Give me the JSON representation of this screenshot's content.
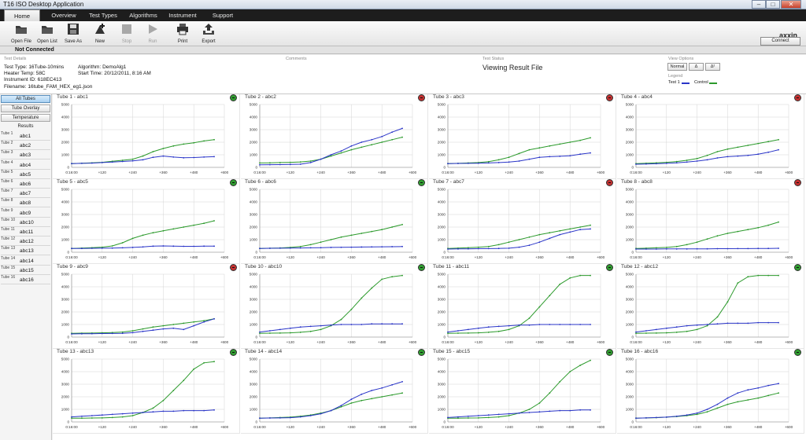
{
  "window": {
    "title": "T16 ISO Desktop Application",
    "controls": [
      "–",
      "□",
      "✕"
    ]
  },
  "menu": {
    "tabs": [
      "Home",
      "Overview",
      "Test Types",
      "Algorithms",
      "Instrument",
      "Support"
    ],
    "active": "Home"
  },
  "toolbar": {
    "buttons": [
      {
        "label": "Open File",
        "icon": "folder-icon",
        "enabled": true
      },
      {
        "label": "Open List",
        "icon": "folder-list-icon",
        "enabled": true
      },
      {
        "label": "Save As",
        "icon": "save-icon",
        "enabled": true
      },
      {
        "label": "New",
        "icon": "new-test-icon",
        "enabled": true
      },
      {
        "label": "Stop",
        "icon": "stop-icon",
        "enabled": false
      },
      {
        "label": "Run",
        "icon": "play-icon",
        "enabled": false
      },
      {
        "label": "Print",
        "icon": "printer-icon",
        "enabled": true
      },
      {
        "label": "Export",
        "icon": "export-icon",
        "enabled": true
      }
    ],
    "logo": "axxin",
    "connect_label": "Connect"
  },
  "connection_status": "Not Connected",
  "details": {
    "header": "Test Details",
    "test_type": "Test Type: 16Tube-10mins",
    "heater_temp": "Heater Temp: 58C",
    "instrument_id": "Instrument ID: 618EC413",
    "filename": "Filename: 16tube_FAM_HEX_eg1.json",
    "algorithm": "Algorithm: DemoAlg1",
    "start_time": "Start Time: 20/12/2011, 8:16 AM"
  },
  "comments": {
    "header": "Comments"
  },
  "test_status": {
    "header": "Test Status",
    "value": "Viewing Result File"
  },
  "view_options": {
    "header": "View Options",
    "buttons": [
      "Normal",
      "Δ",
      "Δ²"
    ],
    "legend_header": "Legend",
    "legend": [
      {
        "label": "Test 1",
        "color": "#2a35c8"
      },
      {
        "label": "Control",
        "color": "#2c9a2c"
      }
    ]
  },
  "sidebar": {
    "buttons": [
      "All Tubes",
      "Tube Overlay",
      "Temperature"
    ],
    "active": "All Tubes",
    "results_header": "Results",
    "tubes": [
      {
        "tube": "Tube 1",
        "name": "abc1"
      },
      {
        "tube": "Tube 2",
        "name": "abc2"
      },
      {
        "tube": "Tube 3",
        "name": "abc3"
      },
      {
        "tube": "Tube 4",
        "name": "abc4"
      },
      {
        "tube": "Tube 5",
        "name": "abc5"
      },
      {
        "tube": "Tube 6",
        "name": "abc6"
      },
      {
        "tube": "Tube 7",
        "name": "abc7"
      },
      {
        "tube": "Tube 8",
        "name": "abc8"
      },
      {
        "tube": "Tube 9",
        "name": "abc9"
      },
      {
        "tube": "Tube 10",
        "name": "abc10"
      },
      {
        "tube": "Tube 11",
        "name": "abc11"
      },
      {
        "tube": "Tube 12",
        "name": "abc12"
      },
      {
        "tube": "Tube 13",
        "name": "abc13"
      },
      {
        "tube": "Tube 14",
        "name": "abc14"
      },
      {
        "tube": "Tube 15",
        "name": "abc15"
      },
      {
        "tube": "Tube 16",
        "name": "abc16"
      }
    ]
  },
  "colors": {
    "test": "#2a35c8",
    "control": "#2c9a2c",
    "positive": "#2f9d2f",
    "negative": "#c53030"
  },
  "chart_data": {
    "type": "line",
    "x_tick_labels": [
      "0:16:00",
      "+120",
      "+240",
      "+360",
      "+480",
      "+600"
    ],
    "x_ticks": [
      0,
      120,
      240,
      360,
      480,
      600
    ],
    "y_ticks": [
      0,
      1000,
      2000,
      3000,
      4000,
      5000
    ],
    "xlim": [
      0,
      600
    ],
    "ylim": [
      0,
      5000
    ],
    "x": [
      0,
      40,
      80,
      120,
      160,
      200,
      240,
      280,
      320,
      360,
      400,
      440,
      480,
      520,
      560
    ],
    "series_names": [
      "Test 1",
      "Control"
    ],
    "panels": [
      {
        "title": "Tube 1 - abc1",
        "status": "positive",
        "test": [
          300,
          320,
          340,
          380,
          420,
          470,
          520,
          600,
          800,
          900,
          820,
          760,
          780,
          820,
          850
        ],
        "control": [
          300,
          330,
          360,
          400,
          480,
          560,
          650,
          900,
          1250,
          1500,
          1700,
          1850,
          1950,
          2100,
          2200
        ]
      },
      {
        "title": "Tube 2 - abc2",
        "status": "negative",
        "test": [
          200,
          210,
          220,
          230,
          250,
          380,
          650,
          1000,
          1300,
          1700,
          2000,
          2200,
          2450,
          2800,
          3100
        ],
        "control": [
          350,
          360,
          380,
          400,
          430,
          500,
          650,
          900,
          1150,
          1400,
          1600,
          1800,
          2000,
          2200,
          2400
        ]
      },
      {
        "title": "Tube 3 - abc3",
        "status": "negative",
        "test": [
          300,
          310,
          320,
          330,
          350,
          380,
          420,
          500,
          650,
          800,
          850,
          880,
          920,
          1050,
          1150
        ],
        "control": [
          300,
          320,
          350,
          380,
          450,
          600,
          800,
          1100,
          1400,
          1550,
          1700,
          1850,
          2000,
          2150,
          2350
        ]
      },
      {
        "title": "Tube 4 - abc4",
        "status": "negative",
        "test": [
          250,
          270,
          290,
          320,
          360,
          420,
          500,
          600,
          750,
          850,
          900,
          950,
          1050,
          1200,
          1400
        ],
        "control": [
          300,
          330,
          360,
          400,
          460,
          560,
          700,
          950,
          1250,
          1450,
          1600,
          1750,
          1900,
          2050,
          2200
        ]
      },
      {
        "title": "Tube 5 - abc5",
        "status": "positive",
        "test": [
          300,
          300,
          310,
          320,
          330,
          350,
          380,
          420,
          480,
          500,
          480,
          470,
          470,
          480,
          480
        ],
        "control": [
          300,
          330,
          360,
          400,
          500,
          750,
          1100,
          1350,
          1550,
          1700,
          1850,
          2000,
          2150,
          2300,
          2500
        ]
      },
      {
        "title": "Tube 6 - abc6",
        "status": "positive",
        "test": [
          300,
          310,
          320,
          330,
          340,
          350,
          360,
          380,
          390,
          400,
          410,
          420,
          430,
          440,
          450
        ],
        "control": [
          300,
          320,
          340,
          380,
          450,
          600,
          800,
          1000,
          1200,
          1350,
          1500,
          1650,
          1800,
          2000,
          2200
        ]
      },
      {
        "title": "Tube 7 - abc7",
        "status": "negative",
        "test": [
          250,
          260,
          270,
          280,
          290,
          300,
          320,
          400,
          550,
          800,
          1100,
          1400,
          1600,
          1800,
          1850
        ],
        "control": [
          300,
          330,
          360,
          400,
          450,
          600,
          800,
          1000,
          1200,
          1400,
          1550,
          1700,
          1850,
          2000,
          2150
        ]
      },
      {
        "title": "Tube 8 - abc8",
        "status": "negative",
        "test": [
          250,
          250,
          250,
          260,
          260,
          260,
          270,
          270,
          280,
          280,
          290,
          290,
          300,
          300,
          310
        ],
        "control": [
          300,
          320,
          350,
          380,
          450,
          600,
          800,
          1050,
          1300,
          1500,
          1650,
          1800,
          1950,
          2150,
          2400
        ]
      },
      {
        "title": "Tube 9 - abc9",
        "status": "negative",
        "test": [
          250,
          260,
          270,
          280,
          290,
          300,
          350,
          450,
          550,
          650,
          700,
          600,
          900,
          1200,
          1450
        ],
        "control": [
          300,
          310,
          320,
          340,
          360,
          400,
          500,
          650,
          800,
          900,
          1000,
          1100,
          1200,
          1300,
          1450
        ]
      },
      {
        "title": "Tube 10 - abc10",
        "status": "positive",
        "test": [
          400,
          500,
          600,
          700,
          800,
          850,
          900,
          950,
          1000,
          1000,
          1000,
          1050,
          1050,
          1050,
          1050
        ],
        "control": [
          300,
          310,
          320,
          340,
          380,
          450,
          600,
          900,
          1400,
          2200,
          3100,
          3900,
          4600,
          4800,
          4900
        ]
      },
      {
        "title": "Tube 11 - abc11",
        "status": "positive",
        "test": [
          400,
          500,
          600,
          700,
          800,
          850,
          900,
          950,
          950,
          1000,
          1000,
          1000,
          1000,
          1000,
          1000
        ],
        "control": [
          300,
          310,
          320,
          340,
          380,
          450,
          600,
          900,
          1500,
          2400,
          3300,
          4200,
          4700,
          4900,
          4900
        ]
      },
      {
        "title": "Tube 12 - abc12",
        "status": "positive",
        "test": [
          400,
          500,
          600,
          700,
          800,
          900,
          950,
          1000,
          1050,
          1100,
          1100,
          1100,
          1150,
          1150,
          1150
        ],
        "control": [
          300,
          310,
          320,
          340,
          380,
          450,
          600,
          900,
          1600,
          2800,
          4300,
          4800,
          4900,
          4900,
          4900
        ]
      },
      {
        "title": "Tube 13 - abc13",
        "status": "positive",
        "test": [
          400,
          450,
          500,
          550,
          600,
          650,
          700,
          750,
          800,
          850,
          850,
          900,
          900,
          900,
          950
        ],
        "control": [
          300,
          300,
          310,
          320,
          350,
          400,
          500,
          750,
          1100,
          1700,
          2500,
          3300,
          4200,
          4700,
          4800
        ]
      },
      {
        "title": "Tube 14 - abc14",
        "status": "positive",
        "test": [
          300,
          310,
          320,
          340,
          400,
          500,
          650,
          900,
          1300,
          1800,
          2200,
          2500,
          2700,
          2950,
          3200
        ],
        "control": [
          300,
          320,
          350,
          380,
          450,
          550,
          700,
          900,
          1200,
          1500,
          1700,
          1850,
          2000,
          2150,
          2300
        ]
      },
      {
        "title": "Tube 15 - abc15",
        "status": "positive",
        "test": [
          350,
          400,
          450,
          500,
          550,
          600,
          650,
          700,
          750,
          800,
          850,
          900,
          900,
          950,
          950
        ],
        "control": [
          300,
          300,
          310,
          320,
          350,
          400,
          500,
          700,
          1000,
          1500,
          2300,
          3200,
          4000,
          4500,
          4900
        ]
      },
      {
        "title": "Tube 16 - abc16",
        "status": "positive",
        "test": [
          300,
          320,
          350,
          380,
          450,
          550,
          700,
          1000,
          1400,
          1900,
          2300,
          2550,
          2700,
          2900,
          3050
        ],
        "control": [
          300,
          320,
          340,
          380,
          430,
          500,
          600,
          800,
          1100,
          1400,
          1600,
          1750,
          1900,
          2100,
          2300
        ]
      }
    ]
  }
}
